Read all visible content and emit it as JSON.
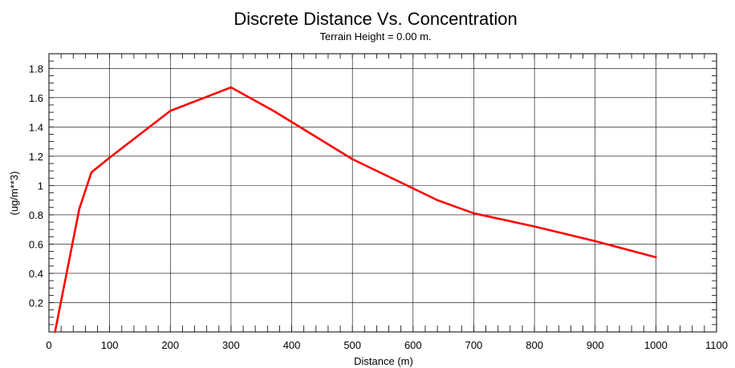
{
  "chart_data": {
    "type": "line",
    "title": "Discrete Distance Vs. Concentration",
    "subtitle": "Terrain Height = 0.00 m.",
    "xlabel": "Distance (m)",
    "ylabel": "(ug/m**3)",
    "xlim": [
      0,
      1100
    ],
    "ylim": [
      0,
      1.9
    ],
    "x_ticks": [
      0,
      100,
      200,
      300,
      400,
      500,
      600,
      700,
      800,
      900,
      1000,
      1100
    ],
    "y_ticks": [
      0.2,
      0.4,
      0.6,
      0.8,
      1,
      1.2,
      1.4,
      1.6,
      1.8
    ],
    "x_tick_labels": [
      "0",
      "100",
      "200",
      "300",
      "400",
      "500",
      "600",
      "700",
      "800",
      "900",
      "1000",
      "1100"
    ],
    "y_tick_labels": [
      "0.2",
      "0.4",
      "0.6",
      "0.8",
      "1",
      "1.2",
      "1.4",
      "1.6",
      "1.8"
    ],
    "grid": true,
    "series": [
      {
        "color": "#ff0000",
        "x": [
          10,
          50,
          70,
          100,
          200,
          300,
          370,
          500,
          640,
          700,
          800,
          900,
          1000
        ],
        "y": [
          0.0,
          0.84,
          1.09,
          1.19,
          1.51,
          1.67,
          1.51,
          1.18,
          0.9,
          0.81,
          0.72,
          0.62,
          0.51
        ]
      }
    ]
  }
}
